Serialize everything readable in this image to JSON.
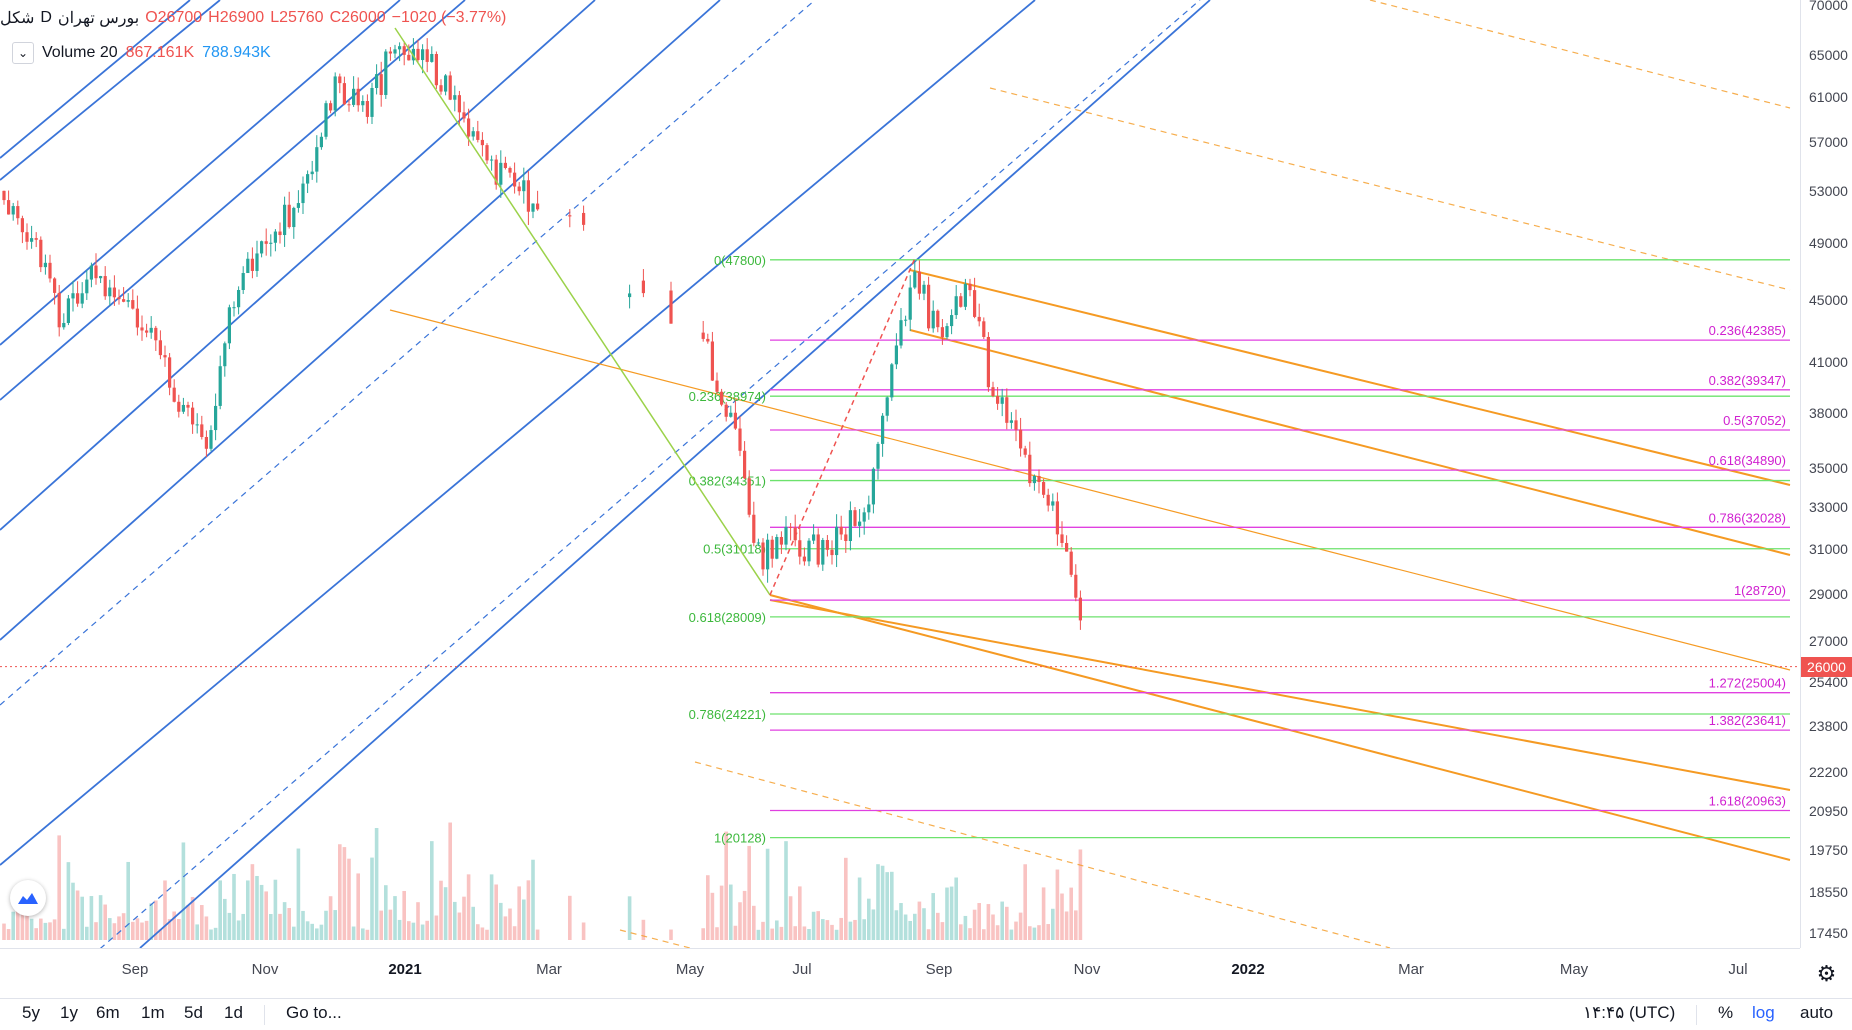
{
  "legend": {
    "title": "شکل",
    "interval": "D",
    "symbol": "بورس تهران",
    "open": "O26700",
    "high": "H26900",
    "low": "L25760",
    "close": "C26000",
    "change": "−1020 (−3.77%)"
  },
  "volume_legend": {
    "label": "Volume 20",
    "value1": "867.161K",
    "value2": "788.943K"
  },
  "last_price": "26000",
  "toolbar": {
    "ranges": [
      "5y",
      "1y",
      "6m",
      "1m",
      "5d",
      "1d"
    ],
    "goto": "Go to...",
    "time": "۱۴:۴۵ (UTC)",
    "percent": "%",
    "log": "log",
    "auto": "auto"
  },
  "colors": {
    "up": "#26a69a",
    "down": "#ef5350",
    "pitchfork_blue": "#3a74d8",
    "channel_orange": "#f59a23",
    "fib_green": "#6de26d",
    "fib_magenta": "#e040e0"
  },
  "chart_data": {
    "type": "candlestick",
    "scale": "log",
    "price_axis_ticks": [
      70000,
      65000,
      61000,
      57000,
      53000,
      49000,
      45000,
      41000,
      38000,
      35000,
      33000,
      31000,
      29000,
      27000,
      25400,
      23800,
      22200,
      20950,
      19750,
      18550,
      17450
    ],
    "time_axis": [
      {
        "label": "Sep",
        "year": false
      },
      {
        "label": "Nov",
        "year": false
      },
      {
        "label": "2021",
        "year": true
      },
      {
        "label": "Mar",
        "year": false
      },
      {
        "label": "May",
        "year": false
      },
      {
        "label": "Jul",
        "year": false
      },
      {
        "label": "Sep",
        "year": false
      },
      {
        "label": "Nov",
        "year": false
      },
      {
        "label": "2022",
        "year": true
      },
      {
        "label": "Mar",
        "year": false
      },
      {
        "label": "May",
        "year": false
      },
      {
        "label": "Jul",
        "year": false
      }
    ],
    "fib_retracement_green": [
      {
        "label": "0(47800)",
        "value": 47800
      },
      {
        "label": "0.236(38974)",
        "value": 38974
      },
      {
        "label": "0.382(34351)",
        "value": 34351
      },
      {
        "label": "0.5(31018)",
        "value": 31018
      },
      {
        "label": "0.618(28009)",
        "value": 28009
      },
      {
        "label": "0.786(24221)",
        "value": 24221
      },
      {
        "label": "1(20128)",
        "value": 20128
      }
    ],
    "fib_extension_magenta": [
      {
        "label": "0.236(42385)",
        "value": 42385
      },
      {
        "label": "0.382(39347)",
        "value": 39347
      },
      {
        "label": "0.5(37052)",
        "value": 37052
      },
      {
        "label": "0.618(34890)",
        "value": 34890
      },
      {
        "label": "0.786(32028)",
        "value": 32028
      },
      {
        "label": "1(28720)",
        "value": 28720
      },
      {
        "label": "1.272(25004)",
        "value": 25004
      },
      {
        "label": "1.382(23641)",
        "value": 23641
      },
      {
        "label": "1.618(20963)",
        "value": 20963
      }
    ],
    "last_close": 26000
  }
}
